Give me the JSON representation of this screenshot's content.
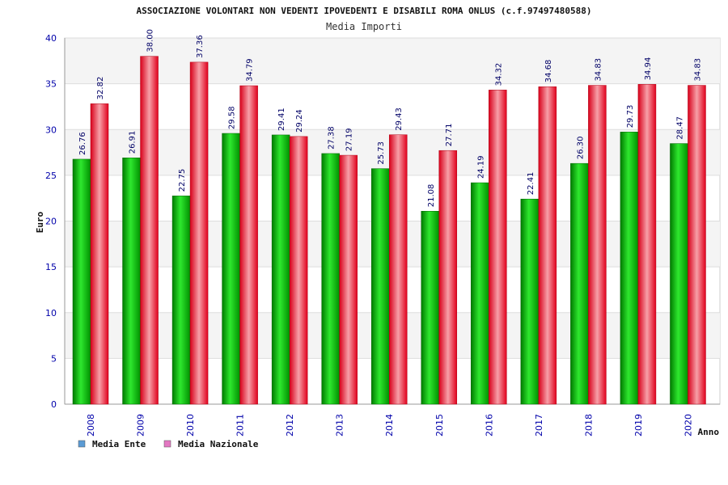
{
  "chart_data": {
    "type": "bar",
    "title": "ASSOCIAZIONE VOLONTARI NON VEDENTI IPOVEDENTI E DISABILI ROMA ONLUS (c.f.97497480588)",
    "subtitle": "Media Importi",
    "xlabel": "Anno",
    "ylabel": "Euro",
    "ylim": [
      0,
      40
    ],
    "yticks": [
      0,
      5,
      10,
      15,
      20,
      25,
      30,
      35,
      40
    ],
    "grid": true,
    "legend_position": "bottom-left",
    "categories": [
      "2008",
      "2009",
      "2010",
      "2011",
      "2012",
      "2013",
      "2014",
      "2015",
      "2016",
      "2017",
      "2018",
      "2019",
      "2020"
    ],
    "series": [
      {
        "name": "Media Ente",
        "color": "#00b000",
        "legend_color": "#5b9bd5",
        "values": [
          26.76,
          26.91,
          22.75,
          29.58,
          29.41,
          27.38,
          25.73,
          21.08,
          24.19,
          22.41,
          26.3,
          29.73,
          28.47
        ],
        "labels": [
          "26.76",
          "26.91",
          "22.75",
          "29.58",
          "29.41",
          "27.38",
          "25.73",
          "21.08",
          "24.19",
          "22.41",
          "26.30",
          "29.73",
          "28.47"
        ]
      },
      {
        "name": "Media Nazionale",
        "color": "#e8001c",
        "legend_color": "#e377c2",
        "values": [
          32.82,
          38.0,
          37.36,
          34.79,
          29.24,
          27.19,
          29.43,
          27.71,
          34.32,
          34.68,
          34.83,
          34.94,
          34.83
        ],
        "labels": [
          "32.82",
          "38.00",
          "37.36",
          "34.79",
          "29.24",
          "27.19",
          "29.43",
          "27.71",
          "34.32",
          "34.68",
          "34.83",
          "34.94",
          "34.83"
        ]
      }
    ]
  }
}
